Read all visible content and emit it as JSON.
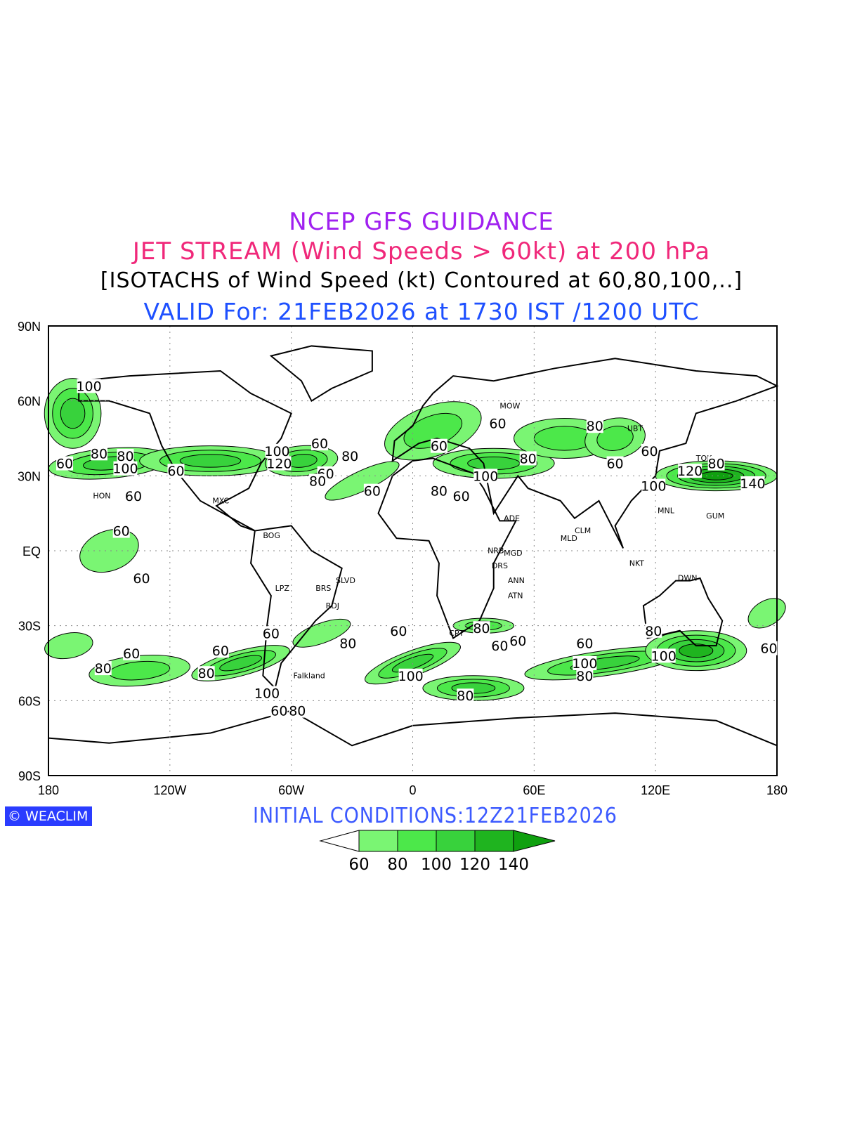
{
  "title": {
    "line1": "NCEP GFS GUIDANCE",
    "line2": "JET STREAM (Wind Speeds > 60kt) at 200 hPa",
    "line3": "[ISOTACHS of Wind Speed (kt) Contoured at 60,80,100,..]",
    "line4": "VALID For: 21FEB2026 at 1730 IST /1200 UTC"
  },
  "initial_conditions": "INITIAL CONDITIONS:12Z21FEB2026",
  "logo": {
    "icon": "copyright-icon",
    "text": "WEACLIM"
  },
  "axes": {
    "lat_labels": [
      {
        "v": 90,
        "t": "90N"
      },
      {
        "v": 60,
        "t": "60N"
      },
      {
        "v": 30,
        "t": "30N"
      },
      {
        "v": 0,
        "t": "EQ"
      },
      {
        "v": -30,
        "t": "30S"
      },
      {
        "v": -60,
        "t": "60S"
      },
      {
        "v": -90,
        "t": "90S"
      }
    ],
    "lon_labels": [
      {
        "v": -180,
        "t": "180"
      },
      {
        "v": -120,
        "t": "120W"
      },
      {
        "v": -60,
        "t": "60W"
      },
      {
        "v": 0,
        "t": "0"
      },
      {
        "v": 60,
        "t": "60E"
      },
      {
        "v": 120,
        "t": "120E"
      },
      {
        "v": 180,
        "t": "180"
      }
    ]
  },
  "colorbar": {
    "levels": [
      "60",
      "80",
      "100",
      "120",
      "140"
    ],
    "colors": [
      "#ffffff",
      "#7af573",
      "#4ce84a",
      "#38d23c",
      "#1fb41f",
      "#0fa00f"
    ]
  },
  "contour_labels": [
    {
      "t": "100",
      "lon": -160,
      "lat": 66
    },
    {
      "t": "80",
      "lon": -155,
      "lat": 39
    },
    {
      "t": "80",
      "lon": -142,
      "lat": 38
    },
    {
      "t": "100",
      "lon": -142,
      "lat": 33
    },
    {
      "t": "60",
      "lon": -172,
      "lat": 35
    },
    {
      "t": "60",
      "lon": -117,
      "lat": 32
    },
    {
      "t": "60",
      "lon": -138,
      "lat": 22
    },
    {
      "t": "60",
      "lon": -144,
      "lat": 8
    },
    {
      "t": "60",
      "lon": -134,
      "lat": -11
    },
    {
      "t": "100",
      "lon": -67,
      "lat": 40
    },
    {
      "t": "120",
      "lon": -66,
      "lat": 35
    },
    {
      "t": "60",
      "lon": -46,
      "lat": 43
    },
    {
      "t": "80",
      "lon": -31,
      "lat": 38
    },
    {
      "t": "60",
      "lon": -43,
      "lat": 31
    },
    {
      "t": "80",
      "lon": -47,
      "lat": 28
    },
    {
      "t": "60",
      "lon": -20,
      "lat": 24
    },
    {
      "t": "80",
      "lon": 13,
      "lat": 24
    },
    {
      "t": "60",
      "lon": 24,
      "lat": 22
    },
    {
      "t": "100",
      "lon": 36,
      "lat": 30
    },
    {
      "t": "80",
      "lon": 57,
      "lat": 37
    },
    {
      "t": "60",
      "lon": 42,
      "lat": 51
    },
    {
      "t": "60",
      "lon": 13,
      "lat": 42
    },
    {
      "t": "80",
      "lon": 90,
      "lat": 50
    },
    {
      "t": "60",
      "lon": 100,
      "lat": 35
    },
    {
      "t": "60",
      "lon": 117,
      "lat": 40
    },
    {
      "t": "120",
      "lon": 137,
      "lat": 32
    },
    {
      "t": "80",
      "lon": 150,
      "lat": 35
    },
    {
      "t": "140",
      "lon": 168,
      "lat": 27
    },
    {
      "t": "100",
      "lon": 119,
      "lat": 26
    },
    {
      "t": "60",
      "lon": -7,
      "lat": -32
    },
    {
      "t": "80",
      "lon": 34,
      "lat": -31
    },
    {
      "t": "60",
      "lon": 43,
      "lat": -38
    },
    {
      "t": "60",
      "lon": 52,
      "lat": -36
    },
    {
      "t": "80",
      "lon": -32,
      "lat": -37
    },
    {
      "t": "60",
      "lon": -139,
      "lat": -41
    },
    {
      "t": "60",
      "lon": -95,
      "lat": -40
    },
    {
      "t": "80",
      "lon": -153,
      "lat": -47
    },
    {
      "t": "80",
      "lon": -102,
      "lat": -49
    },
    {
      "t": "100",
      "lon": -72,
      "lat": -57
    },
    {
      "t": "60",
      "lon": -66,
      "lat": -64
    },
    {
      "t": "80",
      "lon": -57,
      "lat": -64
    },
    {
      "t": "100",
      "lon": -1,
      "lat": -50
    },
    {
      "t": "80",
      "lon": 26,
      "lat": -58
    },
    {
      "t": "60",
      "lon": 85,
      "lat": -37
    },
    {
      "t": "100",
      "lon": 85,
      "lat": -45
    },
    {
      "t": "80",
      "lon": 85,
      "lat": -50
    },
    {
      "t": "100",
      "lon": 124,
      "lat": -42
    },
    {
      "t": "60",
      "lon": 176,
      "lat": -39
    },
    {
      "t": "80",
      "lon": 119,
      "lat": -32
    },
    {
      "t": "60",
      "lon": -70,
      "lat": -33
    }
  ],
  "stations": [
    {
      "t": "MOW",
      "lon": 43,
      "lat": 57
    },
    {
      "t": "HON",
      "lon": -158,
      "lat": 21
    },
    {
      "t": "MXC",
      "lon": -99,
      "lat": 19
    },
    {
      "t": "BOG",
      "lon": -74,
      "lat": 5
    },
    {
      "t": "LPZ",
      "lon": -68,
      "lat": -16
    },
    {
      "t": "BRS",
      "lon": -48,
      "lat": -16
    },
    {
      "t": "SLVD",
      "lon": -38,
      "lat": -13
    },
    {
      "t": "RDJ",
      "lon": -43,
      "lat": -23
    },
    {
      "t": "ADE",
      "lon": 45,
      "lat": 12
    },
    {
      "t": "NRB",
      "lon": 37,
      "lat": -1
    },
    {
      "t": "MGD",
      "lon": 45,
      "lat": -2
    },
    {
      "t": "DRS",
      "lon": 39,
      "lat": -7
    },
    {
      "t": "ANN",
      "lon": 47,
      "lat": -13
    },
    {
      "t": "ATN",
      "lon": 47,
      "lat": -19
    },
    {
      "t": "MNL",
      "lon": 121,
      "lat": 15
    },
    {
      "t": "GUM",
      "lon": 145,
      "lat": 13
    },
    {
      "t": "DWN",
      "lon": 131,
      "lat": -12
    },
    {
      "t": "MLD",
      "lon": 73,
      "lat": 4
    },
    {
      "t": "CLM",
      "lon": 80,
      "lat": 7
    },
    {
      "t": "NKT",
      "lon": 107,
      "lat": -6
    },
    {
      "t": "Falkland",
      "lon": -59,
      "lat": -51
    },
    {
      "t": "CPT",
      "lon": 18,
      "lat": -34
    },
    {
      "t": "UBT",
      "lon": 106,
      "lat": 48
    },
    {
      "t": "TOK",
      "lon": 140,
      "lat": 36
    }
  ]
}
